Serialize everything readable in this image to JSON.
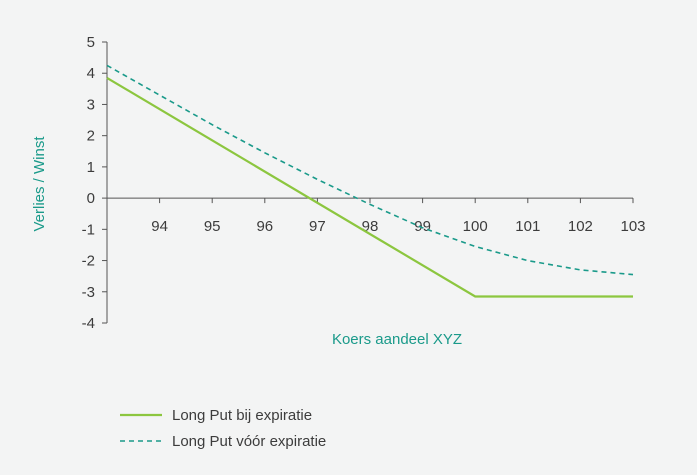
{
  "chart_data": {
    "type": "line",
    "title": "",
    "xlabel": "Koers aandeel XYZ",
    "ylabel": "Verlies / Winst",
    "x_ticks": [
      "94",
      "95",
      "96",
      "97",
      "98",
      "99",
      "100",
      "101",
      "102",
      "103"
    ],
    "y_ticks": [
      "5",
      "4",
      "3",
      "2",
      "1",
      "0",
      "-1",
      "-2",
      "-3",
      "-4"
    ],
    "xlim": [
      93,
      103
    ],
    "ylim": [
      -4,
      5
    ],
    "grid": false,
    "legend_position": "bottom-left",
    "series": [
      {
        "name": "Long Put bij expiratie",
        "style": "solid",
        "color": "#8cc63f",
        "x": [
          93,
          100,
          103
        ],
        "y": [
          3.85,
          -3.15,
          -3.15
        ]
      },
      {
        "name": "Long Put vóór expiratie",
        "style": "dashed",
        "color": "#1a9a8a",
        "x": [
          93,
          94,
          95,
          96,
          97,
          98,
          99,
          100,
          101,
          102,
          103
        ],
        "y": [
          4.25,
          3.3,
          2.35,
          1.45,
          0.6,
          -0.2,
          -0.95,
          -1.55,
          -2.0,
          -2.3,
          -2.45
        ]
      }
    ]
  },
  "colors": {
    "axis_title": "#1a9a8a",
    "axis_line": "#555555",
    "tick_text": "#3c3c3c"
  }
}
